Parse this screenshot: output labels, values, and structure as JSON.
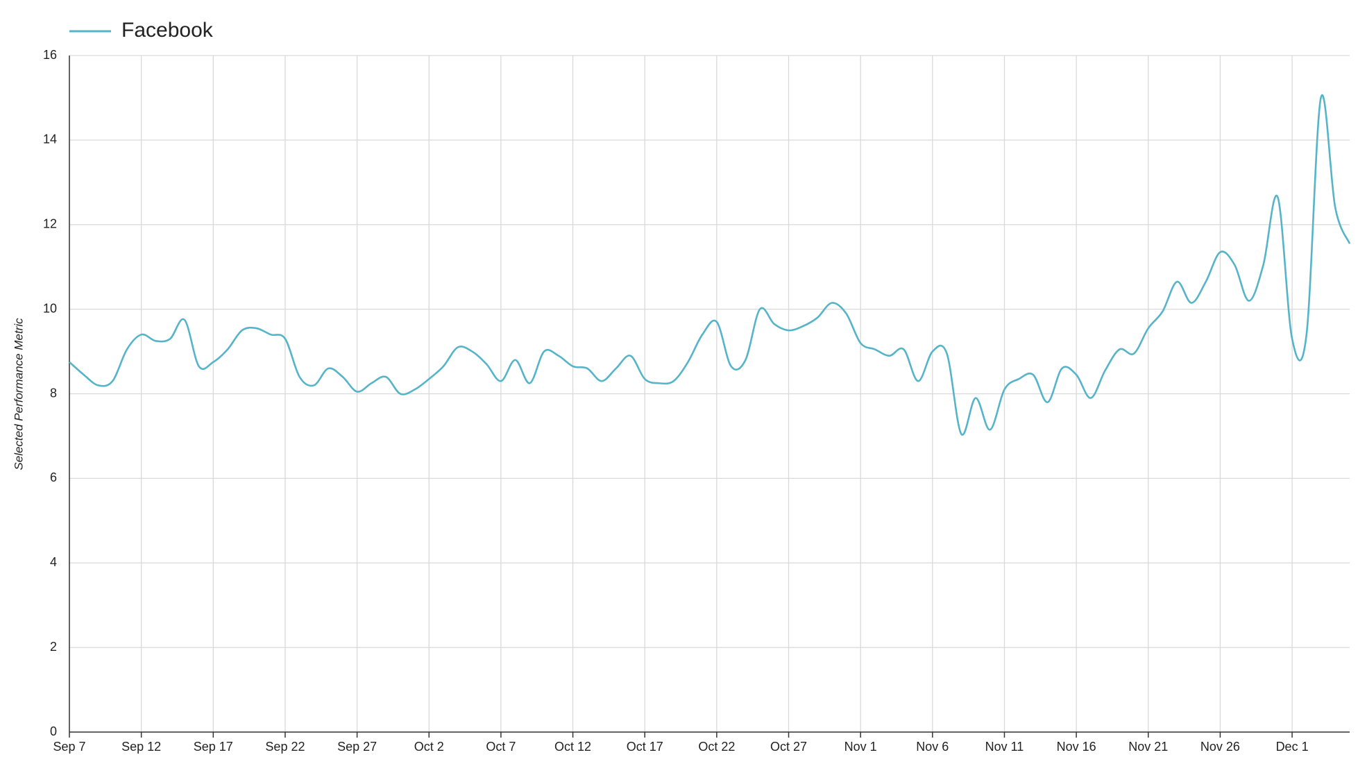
{
  "chart_data": {
    "type": "line",
    "y_label": "Selected Performance Metric",
    "categories": [
      "Sep 7",
      null,
      null,
      null,
      null,
      "Sep 12",
      null,
      null,
      null,
      null,
      "Sep 17",
      null,
      null,
      null,
      null,
      "Sep 22",
      null,
      null,
      null,
      null,
      "Sep 27",
      null,
      null,
      null,
      null,
      "Oct 2",
      null,
      null,
      null,
      null,
      "Oct 7",
      null,
      null,
      null,
      null,
      "Oct 12",
      null,
      null,
      null,
      null,
      "Oct 17",
      null,
      null,
      null,
      null,
      "Oct 22",
      null,
      null,
      null,
      null,
      "Oct 27",
      null,
      null,
      null,
      null,
      "Nov 1",
      null,
      null,
      null,
      null,
      "Nov 6",
      null,
      null,
      null,
      null,
      "Nov 11",
      null,
      null,
      null,
      null,
      "Nov 16",
      null,
      null,
      null,
      null,
      "Nov 21",
      null,
      null,
      null,
      null,
      "Nov 26",
      null,
      null,
      null,
      null,
      "Dec 1",
      null,
      null,
      null,
      null
    ],
    "series": [
      {
        "name": "Facebook",
        "color": "#56b4c9",
        "values": [
          8.75,
          8.45,
          8.2,
          8.3,
          9.05,
          9.4,
          9.25,
          9.3,
          9.75,
          8.65,
          8.75,
          9.05,
          9.5,
          9.55,
          9.4,
          9.3,
          8.4,
          8.2,
          8.6,
          8.4,
          8.05,
          8.25,
          8.4,
          8.0,
          8.1,
          8.35,
          8.65,
          9.1,
          9.0,
          8.7,
          8.3,
          8.8,
          8.25,
          9.0,
          8.9,
          8.65,
          8.6,
          8.3,
          8.6,
          8.9,
          8.35,
          8.25,
          8.3,
          8.75,
          9.4,
          9.7,
          8.65,
          8.8,
          10.0,
          9.65,
          9.5,
          9.6,
          9.8,
          10.15,
          9.9,
          9.2,
          9.05,
          8.9,
          9.05,
          8.3,
          9.0,
          8.95,
          7.05,
          7.9,
          7.15,
          8.1,
          8.35,
          8.45,
          7.8,
          8.6,
          8.45,
          7.9,
          8.55,
          9.05,
          8.95,
          9.55,
          9.95,
          10.65,
          10.15,
          10.65,
          11.35,
          11.05,
          10.2,
          11.05,
          12.65,
          9.3,
          9.4,
          15.0,
          12.4,
          11.55
        ]
      }
    ],
    "ylim": [
      0,
      16
    ],
    "yticks": [
      0,
      2,
      4,
      6,
      8,
      10,
      12,
      14,
      16
    ],
    "grid": true,
    "legend": "top-left"
  }
}
